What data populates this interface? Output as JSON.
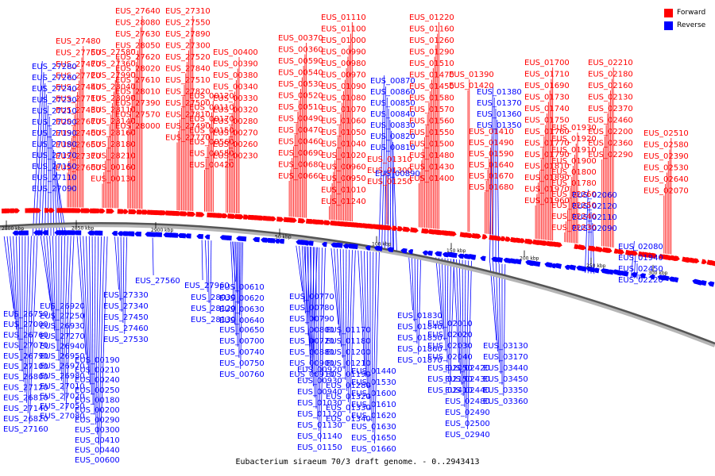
{
  "caption": "Eubacterium siraeum 70/3 draft genome. - 0..2943413",
  "legend": [
    {
      "label": "Forward",
      "color": "#ff0000"
    },
    {
      "label": "Reverse",
      "color": "#0000ff"
    }
  ],
  "colors": {
    "forward": "#ff0000",
    "reverse": "#0000ff",
    "backbone": "#555555"
  },
  "ticks": [
    "2800 kbp",
    "2850 kbp",
    "2900 kbp",
    "50 kbp",
    "100 kbp",
    "150 kbp",
    "200 kbp",
    "250 kbp",
    "300 kbp"
  ],
  "forward_labels": [
    "EUS_27640",
    "EUS_28080",
    "EUS_27630",
    "EUS_28050",
    "EUS_27620",
    "EUS_28020",
    "EUS_27610",
    "EUS_28010",
    "EUS_27390",
    "EUS_27570",
    "EUS_28000",
    "EUS_27310",
    "EUS_27550",
    "EUS_27890",
    "EUS_27300",
    "EUS_27520",
    "EUS_27840",
    "EUS_27510",
    "EUS_27820",
    "EUS_27500",
    "EUS_27810",
    "EUS_27490",
    "EUS_27770",
    "EUS_27480",
    "EUS_27750",
    "EUS_27470",
    "EUS_27720",
    "EUS_27440",
    "EUS_27710",
    "EUS_27430",
    "EUS_27670",
    "EUS_27400",
    "EUS_27650",
    "EUS_27370",
    "EUS_27600",
    "EUS_27580",
    "EUS_27360",
    "EUS_27990",
    "EUS_28040",
    "EUS_28090",
    "EUS_28110",
    "EUS_28140",
    "EUS_28160",
    "EUS_28180",
    "EUS_28210",
    "EUS_00160",
    "EUS_00130",
    "EUS_00120",
    "EUS_00110",
    "EUS_00170",
    "EUS_00150",
    "EUS_00560",
    "EUS_00550",
    "EUS_00420",
    "EUS_00400",
    "EUS_00390",
    "EUS_00380",
    "EUS_00340",
    "EUS_00330",
    "EUS_00320",
    "EUS_00280",
    "EUS_00270",
    "EUS_00260",
    "EUS_00230",
    "EUS_00370",
    "EUS_00360",
    "EUS_00590",
    "EUS_00540",
    "EUS_00530",
    "EUS_00520",
    "EUS_00510",
    "EUS_00490",
    "EUS_00470",
    "EUS_00460",
    "EUS_00690",
    "EUS_00680",
    "EUS_00660",
    "EUS_01110",
    "EUS_01100",
    "EUS_01000",
    "EUS_00990",
    "EUS_00980",
    "EUS_00970",
    "EUS_01090",
    "EUS_01080",
    "EUS_01070",
    "EUS_01060",
    "EUS_01050",
    "EUS_01040",
    "EUS_01020",
    "EUS_00960",
    "EUS_00950",
    "EUS_01010",
    "EUS_01240",
    "EUS_01310",
    "EUS_01300",
    "EUS_01250",
    "EUS_01220",
    "EUS_01160",
    "EUS_01260",
    "EUS_01290",
    "EUS_01510",
    "EUS_01470",
    "EUS_01450",
    "EUS_01580",
    "EUS_01570",
    "EUS_01560",
    "EUS_01550",
    "EUS_01500",
    "EUS_01480",
    "EUS_01430",
    "EUS_01400",
    "EUS_01390",
    "EUS_01420",
    "EUS_01410",
    "EUS_01490",
    "EUS_01590",
    "EUS_01640",
    "EUS_01670",
    "EUS_01680",
    "EUS_01700",
    "EUS_01710",
    "EUS_01690",
    "EUS_01730",
    "EUS_01740",
    "EUS_01750",
    "EUS_01760",
    "EUS_01770",
    "EUS_01790",
    "EUS_01810",
    "EUS_01890",
    "EUS_01970",
    "EUS_01960",
    "EUS_01930",
    "EUS_01920",
    "EUS_01910",
    "EUS_01900",
    "EUS_01800",
    "EUS_01780",
    "EUS_02260",
    "EUS_02250",
    "EUS_02240",
    "EUS_02230",
    "EUS_02210",
    "EUS_02180",
    "EUS_02160",
    "EUS_02130",
    "EUS_02370",
    "EUS_02460",
    "EUS_02200",
    "EUS_02360",
    "EUS_02290",
    "EUS_02510",
    "EUS_02580",
    "EUS_02390",
    "EUS_02530",
    "EUS_02640",
    "EUS_02070"
  ],
  "reverse_labels": [
    "EUS_27280",
    "EUS_27260",
    "EUS_27240",
    "EUS_27230",
    "EUS_27210",
    "EUS_27200",
    "EUS_27190",
    "EUS_27180",
    "EUS_27170",
    "EUS_27150",
    "EUS_27110",
    "EUS_27090",
    "EUS_00870",
    "EUS_00860",
    "EUS_00850",
    "EUS_00840",
    "EUS_00830",
    "EUS_00820",
    "EUS_00810",
    "EUS_00890",
    "EUS_01380",
    "EUS_01370",
    "EUS_01360",
    "EUS_01350",
    "EUS_02060",
    "EUS_02120",
    "EUS_02110",
    "EUS_02090",
    "EUS_02080",
    "EUS_01940",
    "EUS_02450",
    "EUS_02220",
    "EUS_27560",
    "EUS_27960",
    "EUS_28030",
    "EUS_28120",
    "EUS_28130",
    "EUS_27330",
    "EUS_27340",
    "EUS_27450",
    "EUS_27460",
    "EUS_27530",
    "EUS_26750",
    "EUS_27000",
    "EUS_26760",
    "EUS_27070",
    "EUS_26790",
    "EUS_27100",
    "EUS_26800",
    "EUS_27120",
    "EUS_26810",
    "EUS_27140",
    "EUS_26820",
    "EUS_27160",
    "EUS_26920",
    "EUS_27250",
    "EUS_26930",
    "EUS_27270",
    "EUS_26940",
    "EUS_26950",
    "EUS_26970",
    "EUS_26980",
    "EUS_27010",
    "EUS_27020",
    "EUS_27050",
    "EUS_27080",
    "EUS_00190",
    "EUS_00210",
    "EUS_00240",
    "EUS_00250",
    "EUS_00180",
    "EUS_00200",
    "EUS_00290",
    "EUS_00300",
    "EUS_00410",
    "EUS_00440",
    "EUS_00600",
    "EUS_00610",
    "EUS_00620",
    "EUS_00630",
    "EUS_00640",
    "EUS_00650",
    "EUS_00700",
    "EUS_00740",
    "EUS_00750",
    "EUS_00760",
    "EUS_00770",
    "EUS_00780",
    "EUS_00790",
    "EUS_00800",
    "EUS_00720",
    "EUS_00880",
    "EUS_00900",
    "EUS_00910",
    "EUS_00920",
    "EUS_00930",
    "EUS_00940",
    "EUS_01030",
    "EUS_01120",
    "EUS_01130",
    "EUS_01140",
    "EUS_01150",
    "EUS_01170",
    "EUS_01180",
    "EUS_01200",
    "EUS_01210",
    "EUS_01190",
    "EUS_01280",
    "EUS_01320",
    "EUS_01330",
    "EUS_01340",
    "EUS_01440",
    "EUS_01530",
    "EUS_01600",
    "EUS_01610",
    "EUS_01620",
    "EUS_01630",
    "EUS_01650",
    "EUS_01660",
    "EUS_01830",
    "EUS_01840",
    "EUS_01850",
    "EUS_01860",
    "EUS_01870",
    "EUS_02010",
    "EUS_02020",
    "EUS_02030",
    "EUS_02040",
    "EUS_02050",
    "EUS_02150",
    "EUS_02410",
    "EUS_02420",
    "EUS_02430",
    "EUS_02440",
    "EUS_02480",
    "EUS_02490",
    "EUS_02500",
    "EUS_02940",
    "EUS_03130",
    "EUS_03170",
    "EUS_03440",
    "EUS_03450",
    "EUS_03350",
    "EUS_03360"
  ]
}
